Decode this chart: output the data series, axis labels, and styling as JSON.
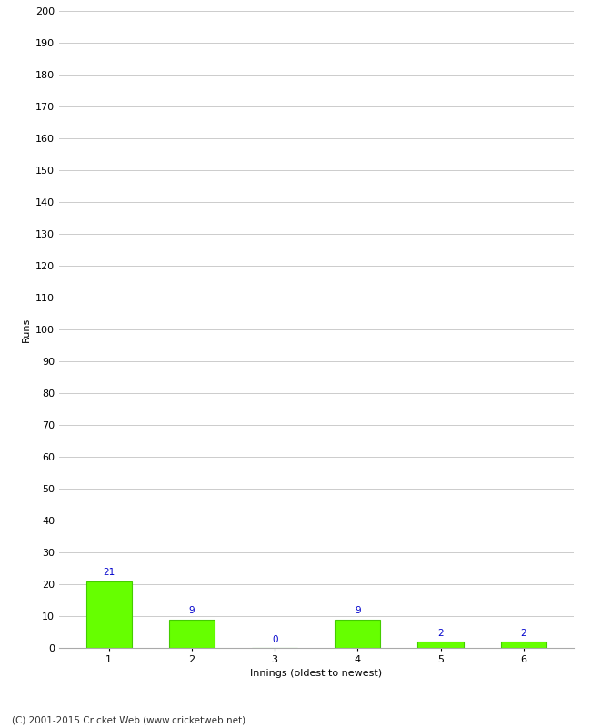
{
  "xlabel": "Innings (oldest to newest)",
  "ylabel": "Runs",
  "categories": [
    1,
    2,
    3,
    4,
    5,
    6
  ],
  "values": [
    21,
    9,
    0,
    9,
    2,
    2
  ],
  "bar_color": "#66ff00",
  "bar_edge_color": "#44cc00",
  "label_color": "#0000cc",
  "ylim": [
    0,
    200
  ],
  "yticks": [
    0,
    10,
    20,
    30,
    40,
    50,
    60,
    70,
    80,
    90,
    100,
    110,
    120,
    130,
    140,
    150,
    160,
    170,
    180,
    190,
    200
  ],
  "background_color": "#ffffff",
  "grid_color": "#cccccc",
  "footer": "(C) 2001-2015 Cricket Web (www.cricketweb.net)",
  "label_fontsize": 7.5,
  "axis_label_fontsize": 8,
  "tick_fontsize": 8,
  "footer_fontsize": 7.5
}
